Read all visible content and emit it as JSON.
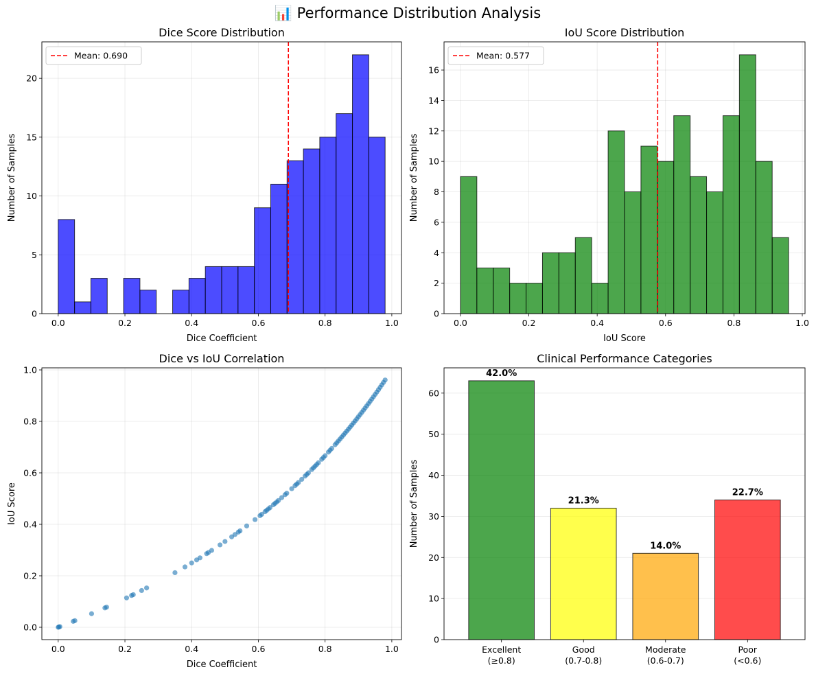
{
  "suptitle": "📊 Performance Distribution Analysis",
  "chart_data": [
    {
      "type": "histogram",
      "title": "Dice Score Distribution",
      "xlabel": "Dice Coefficient",
      "ylabel": "Number of Samples",
      "bin_start": 0.0,
      "bin_width": 0.049,
      "counts": [
        8,
        1,
        3,
        0,
        3,
        2,
        0,
        2,
        3,
        4,
        4,
        4,
        9,
        11,
        13,
        14,
        15,
        17,
        22,
        15
      ],
      "color": "#0000ff",
      "xlim": [
        -0.049,
        1.029
      ],
      "ylim": [
        0,
        23.1
      ],
      "xticks": [
        0.0,
        0.2,
        0.4,
        0.6,
        0.8,
        1.0
      ],
      "xtick_labels": [
        "0.0",
        "0.2",
        "0.4",
        "0.6",
        "0.8",
        "1.0"
      ],
      "yticks": [
        0,
        5,
        10,
        15,
        20
      ],
      "ytick_labels": [
        "0",
        "5",
        "10",
        "15",
        "20"
      ],
      "mean": 0.69,
      "mean_label": "Mean: 0.690",
      "legend_loc": "upper left",
      "grid": true
    },
    {
      "type": "histogram",
      "title": "IoU Score Distribution",
      "xlabel": "IoU Score",
      "ylabel": "Number of Samples",
      "bin_start": 0.0,
      "bin_width": 0.048,
      "counts": [
        9,
        3,
        3,
        2,
        2,
        4,
        4,
        5,
        2,
        12,
        8,
        11,
        10,
        13,
        9,
        8,
        13,
        17,
        10,
        5
      ],
      "color": "#008000",
      "xlim": [
        -0.048,
        1.008
      ],
      "ylim": [
        0,
        17.85
      ],
      "xticks": [
        0.0,
        0.2,
        0.4,
        0.6,
        0.8,
        1.0
      ],
      "xtick_labels": [
        "0.0",
        "0.2",
        "0.4",
        "0.6",
        "0.8",
        "1.0"
      ],
      "yticks": [
        0,
        2,
        4,
        6,
        8,
        10,
        12,
        14,
        16
      ],
      "ytick_labels": [
        "0",
        "2",
        "4",
        "6",
        "8",
        "10",
        "12",
        "14",
        "16"
      ],
      "mean": 0.577,
      "mean_label": "Mean: 0.577",
      "legend_loc": "upper left",
      "grid": true
    },
    {
      "type": "scatter",
      "title": "Dice vs IoU Correlation",
      "xlabel": "Dice Coefficient",
      "ylabel": "IoU Score",
      "x": [
        0.0,
        0.002,
        0.005,
        0.045,
        0.05,
        0.1,
        0.14,
        0.145,
        0.205,
        0.22,
        0.225,
        0.25,
        0.265,
        0.35,
        0.38,
        0.4,
        0.415,
        0.425,
        0.445,
        0.45,
        0.46,
        0.485,
        0.5,
        0.52,
        0.53,
        0.54,
        0.545,
        0.565,
        0.59,
        0.605,
        0.61,
        0.62,
        0.625,
        0.63,
        0.635,
        0.645,
        0.65,
        0.655,
        0.66,
        0.67,
        0.68,
        0.685,
        0.7,
        0.71,
        0.715,
        0.72,
        0.73,
        0.74,
        0.745,
        0.75,
        0.76,
        0.765,
        0.77,
        0.775,
        0.78,
        0.79,
        0.795,
        0.8,
        0.81,
        0.815,
        0.82,
        0.83,
        0.835,
        0.84,
        0.845,
        0.85,
        0.855,
        0.86,
        0.865,
        0.87,
        0.875,
        0.88,
        0.885,
        0.89,
        0.895,
        0.9,
        0.905,
        0.91,
        0.915,
        0.92,
        0.925,
        0.93,
        0.935,
        0.94,
        0.945,
        0.95,
        0.955,
        0.96,
        0.965,
        0.97,
        0.975,
        0.98
      ],
      "xlim": [
        -0.049,
        1.029
      ],
      "ylim": [
        -0.048,
        1.008
      ],
      "xticks": [
        0.0,
        0.2,
        0.4,
        0.6,
        0.8,
        1.0
      ],
      "xtick_labels": [
        "0.0",
        "0.2",
        "0.4",
        "0.6",
        "0.8",
        "1.0"
      ],
      "yticks": [
        0.0,
        0.2,
        0.4,
        0.6,
        0.8,
        1.0
      ],
      "ytick_labels": [
        "0.0",
        "0.2",
        "0.4",
        "0.6",
        "0.8",
        "1.0"
      ],
      "relation": "iou = dice / (2 - dice)",
      "color": "#1f77b4",
      "grid": true
    },
    {
      "type": "bar",
      "title": "Clinical Performance Categories",
      "xlabel": "",
      "ylabel": "Number of Samples",
      "categories": [
        [
          "Excellent",
          "(≥0.8)"
        ],
        [
          "Good",
          "(0.7-0.8)"
        ],
        [
          "Moderate",
          "(0.6-0.7)"
        ],
        [
          "Poor",
          "(<0.6)"
        ]
      ],
      "values": [
        63,
        32,
        21,
        34
      ],
      "percent_labels": [
        "42.0%",
        "21.3%",
        "14.0%",
        "22.7%"
      ],
      "colors": [
        "#008000",
        "#ffff00",
        "#ffa500",
        "#ff0000"
      ],
      "ylim": [
        0,
        66.15
      ],
      "yticks": [
        0,
        10,
        20,
        30,
        40,
        50,
        60
      ],
      "ytick_labels": [
        "0",
        "10",
        "20",
        "30",
        "40",
        "50",
        "60"
      ],
      "grid": true
    }
  ]
}
